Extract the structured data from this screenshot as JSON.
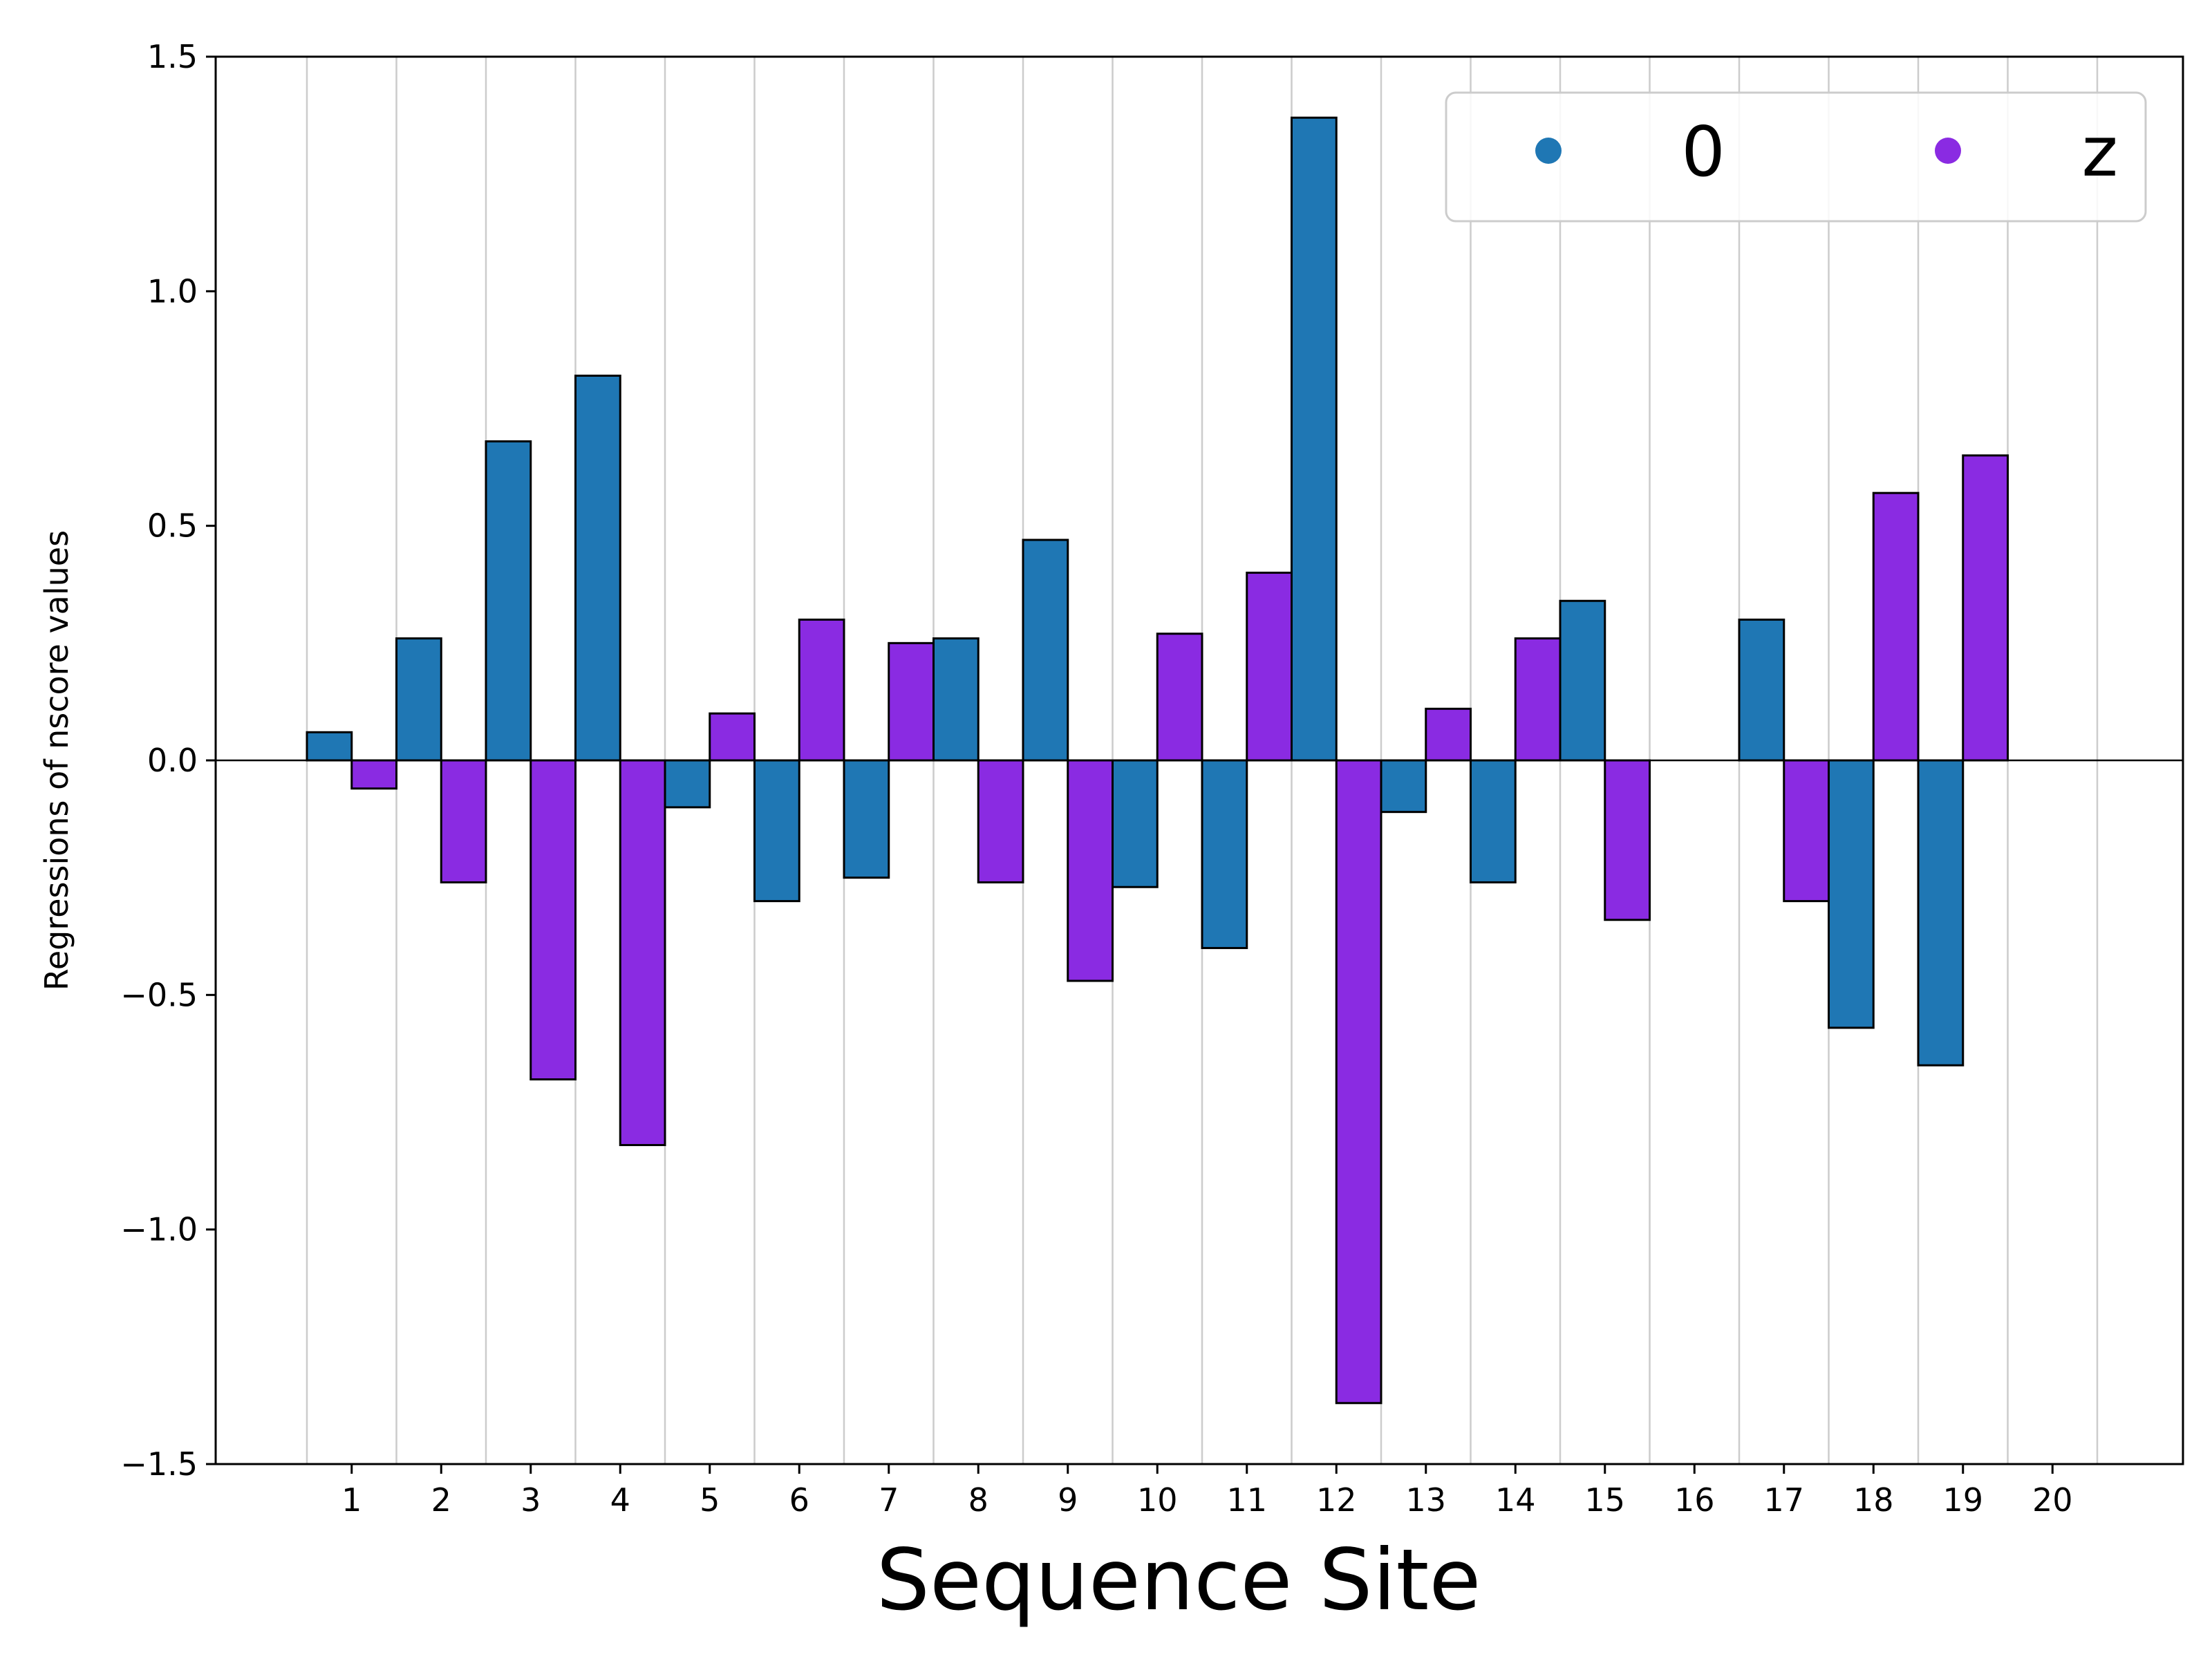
{
  "chart_data": {
    "type": "bar",
    "title": "",
    "xlabel": "Sequence Site",
    "ylabel": "Regressions of nscore values",
    "ylim": [
      -1.5,
      1.5
    ],
    "yticks": [
      -1.5,
      -1.0,
      -0.5,
      0.0,
      0.5,
      1.0,
      1.5
    ],
    "ytick_labels": [
      "−1.5",
      "−1.0",
      "−0.5",
      "0.0",
      "0.5",
      "1.0",
      "1.5"
    ],
    "categories": [
      "1",
      "2",
      "3",
      "4",
      "5",
      "6",
      "7",
      "8",
      "9",
      "10",
      "11",
      "12",
      "13",
      "14",
      "15",
      "16",
      "17",
      "18",
      "19",
      "20"
    ],
    "grid": "vertical",
    "legend_position": "top-right",
    "series": [
      {
        "name": "0",
        "color": "#1f77b4",
        "values": [
          0.06,
          0.26,
          0.68,
          0.82,
          -0.1,
          -0.3,
          -0.25,
          0.26,
          0.47,
          -0.27,
          -0.4,
          1.37,
          -0.11,
          -0.26,
          0.34,
          0.0,
          0.3,
          -0.57,
          -0.65,
          0.0
        ]
      },
      {
        "name": "z",
        "color": "#8a2be2",
        "values": [
          -0.06,
          -0.26,
          -0.68,
          -0.82,
          0.1,
          0.3,
          0.25,
          -0.26,
          -0.47,
          0.27,
          0.4,
          -1.37,
          0.11,
          0.26,
          -0.34,
          0.0,
          -0.3,
          0.57,
          0.65,
          0.0
        ]
      }
    ]
  }
}
